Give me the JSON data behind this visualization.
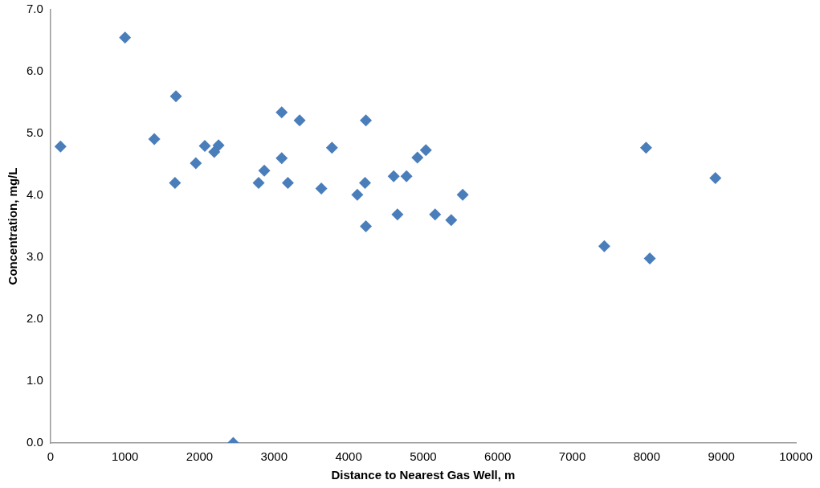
{
  "chart_data": {
    "type": "scatter",
    "xlabel": "Distance to Nearest Gas Well, m",
    "ylabel": "Concentration, mg/L",
    "marker": "diamond",
    "grid": false,
    "legend": false,
    "x": [
      134,
      1000,
      1393,
      1683,
      1670,
      1950,
      2070,
      2197,
      2255,
      2452,
      2792,
      2868,
      3102,
      3102,
      3185,
      3342,
      3633,
      3776,
      4116,
      4231,
      4220,
      4231,
      4604,
      4776,
      4655,
      4923,
      5036,
      5160,
      5376,
      5530,
      7430,
      7990,
      8040,
      8920
    ],
    "series": [
      {
        "color": "#4a7ebb",
        "values": [
          4.79,
          6.55,
          4.91,
          5.6,
          4.2,
          4.52,
          4.8,
          4.7,
          4.81,
          0,
          4.2,
          4.4,
          5.34,
          4.6,
          4.2,
          5.21,
          4.11,
          4.77,
          4.01,
          5.21,
          4.2,
          3.5,
          4.31,
          4.31,
          3.69,
          4.61,
          4.73,
          3.69,
          3.6,
          4.01,
          3.18,
          4.77,
          2.98,
          4.28
        ]
      }
    ],
    "xlim": [
      0,
      10000
    ],
    "xticks": [
      0,
      1000,
      2000,
      3000,
      4000,
      5000,
      6000,
      7000,
      8000,
      9000,
      10000
    ],
    "ylim": [
      0,
      7
    ],
    "yticks": [
      {
        "value": 0,
        "label": "0.0"
      },
      {
        "value": 1,
        "label": "1.0"
      },
      {
        "value": 2,
        "label": "2.0"
      },
      {
        "value": 3,
        "label": "3.0"
      },
      {
        "value": 4,
        "label": "4.0"
      },
      {
        "value": 5,
        "label": "5.0"
      },
      {
        "value": 6,
        "label": "6.0"
      },
      {
        "value": 7,
        "label": "7.0"
      }
    ]
  }
}
